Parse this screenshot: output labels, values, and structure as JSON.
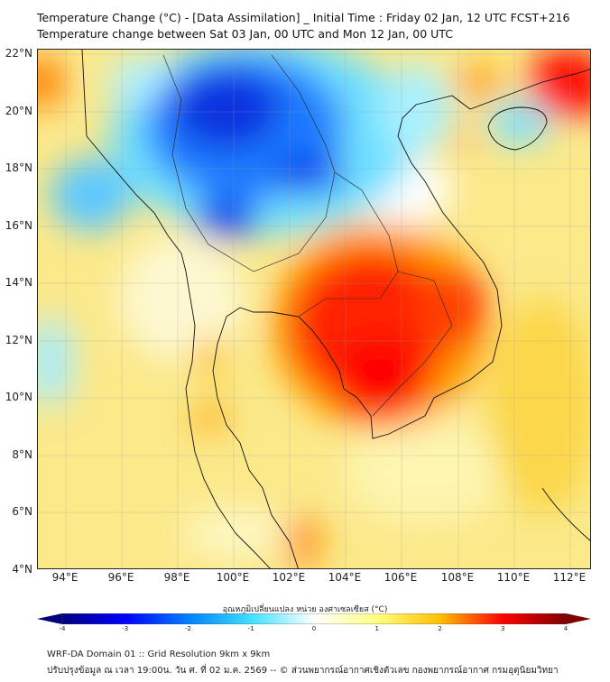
{
  "title": {
    "line1": "Temperature Change (°C) - [Data Assimilation] _ Initial Time : Friday 02 Jan, 12 UTC FCST+216",
    "line2": "Temperature change between Sat 03 Jan, 00 UTC and Mon 12 Jan, 00 UTC"
  },
  "map": {
    "lat_labels": [
      "22°N",
      "20°N",
      "18°N",
      "16°N",
      "14°N",
      "12°N",
      "10°N",
      "8°N",
      "6°N",
      "4°N"
    ],
    "lon_labels": [
      "94°E",
      "96°E",
      "98°E",
      "100°E",
      "102°E",
      "104°E",
      "106°E",
      "108°E",
      "110°E",
      "112°E"
    ]
  },
  "colorbar": {
    "title": "อุณหภูมิเปลี่ยนแปลง หน่วย องศาเซลเซียส (°C)",
    "ticks": [
      "-4",
      "-3",
      "-2",
      "-1",
      "0",
      "1",
      "2",
      "3",
      "4"
    ],
    "range": [
      -4,
      4
    ],
    "colors": [
      "#00007f",
      "#0000ff",
      "#0080ff",
      "#40e0ff",
      "#ffffff",
      "#ffff80",
      "#ffc000",
      "#ff0000",
      "#7f0000"
    ]
  },
  "footer": {
    "line1": "WRF-DA Domain 01 :: Grid Resolution 9km x 9km",
    "line2": "ปรับปรุงข้อมูล ณ เวลา 19:00น. วัน ศ. ที่ 02 ม.ค. 2569 -- © ส่วนพยากรณ์อากาศเชิงตัวเลข กองพยากรณ์อากาศ กรมอุตุนิยมวิทยา"
  }
}
